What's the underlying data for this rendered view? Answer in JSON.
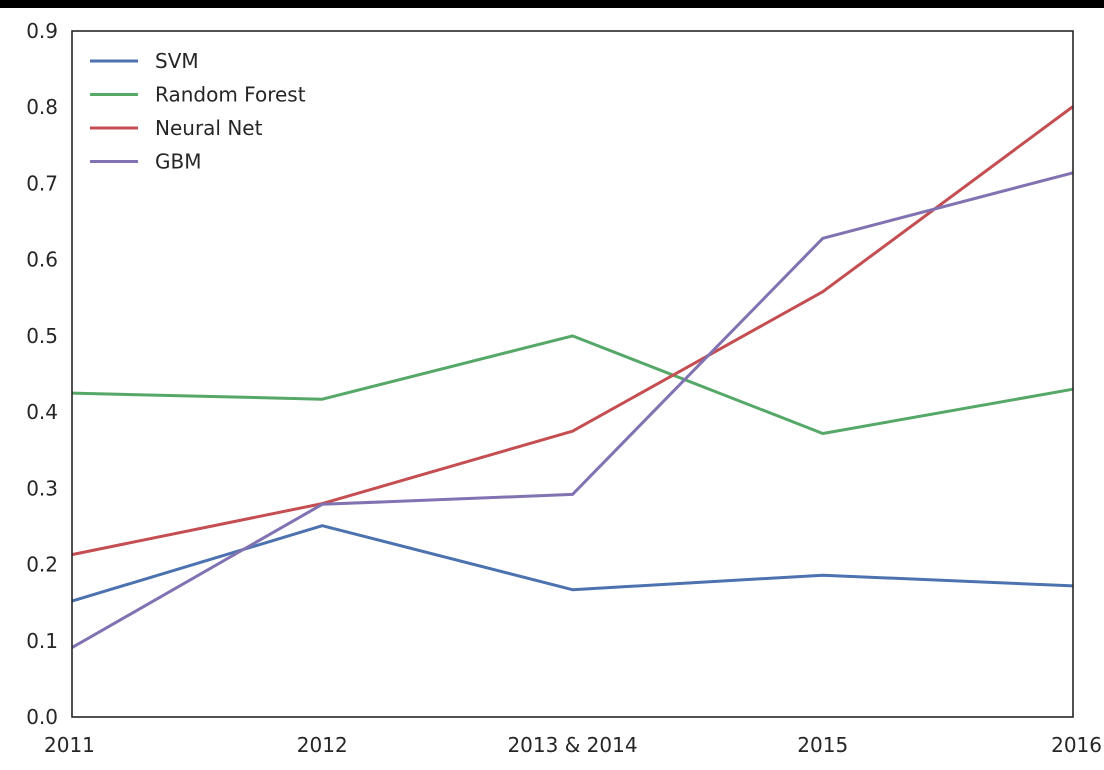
{
  "chart_data": {
    "type": "line",
    "title": "",
    "xlabel": "",
    "ylabel": "",
    "categories": [
      "2011",
      "2012",
      "2013 & 2014",
      "2015",
      "2016"
    ],
    "ylim": [
      0.0,
      0.9
    ],
    "yticks": [
      "0.0",
      "0.1",
      "0.2",
      "0.3",
      "0.4",
      "0.5",
      "0.6",
      "0.7",
      "0.8",
      "0.9"
    ],
    "grid": false,
    "legend_position": "top-left",
    "series": [
      {
        "name": "SVM",
        "color": "#4C72B0",
        "values": [
          0.152,
          0.251,
          0.167,
          0.186,
          0.172
        ]
      },
      {
        "name": "Random Forest",
        "color": "#55A868",
        "values": [
          0.425,
          0.417,
          0.5,
          0.372,
          0.43
        ]
      },
      {
        "name": "Neural Net",
        "color": "#C44E52",
        "values": [
          0.213,
          0.28,
          0.375,
          0.558,
          0.801
        ]
      },
      {
        "name": "GBM",
        "color": "#8172B2",
        "values": [
          0.091,
          0.279,
          0.292,
          0.628,
          0.714
        ]
      }
    ]
  }
}
